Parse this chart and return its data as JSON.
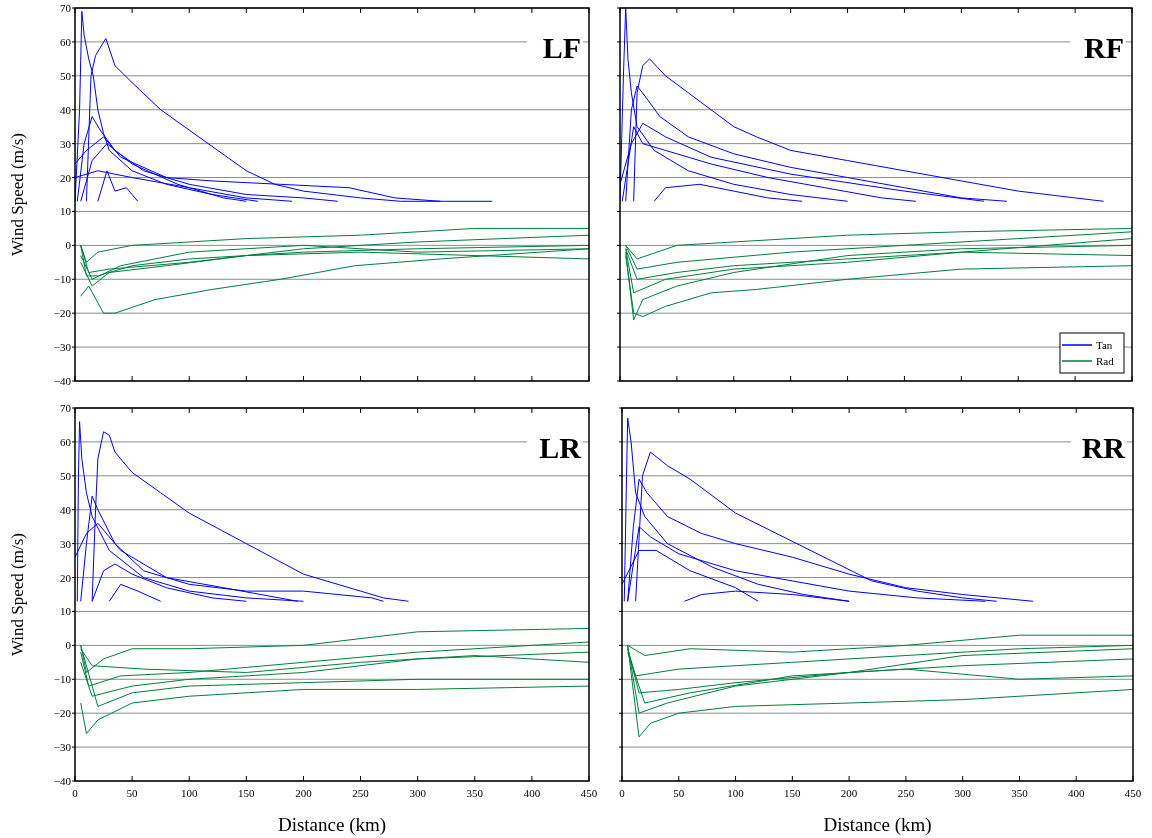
{
  "chart_data": [
    {
      "type": "line",
      "title": "LF",
      "ylabel": "Wind Speed (m/s)",
      "xlim": [
        0,
        450
      ],
      "xticks": [
        0,
        50,
        100,
        150,
        200,
        250,
        300,
        350,
        400,
        450
      ],
      "ylim": [
        -40,
        70
      ],
      "yticks": [
        -40,
        -30,
        -20,
        -10,
        0,
        10,
        20,
        30,
        40,
        50,
        60,
        70
      ],
      "grid": "y",
      "legend": false,
      "tick_labels": "y",
      "marker": "none",
      "line_style": "solid",
      "series": [
        {
          "color": "#0000ff",
          "x": [
            0,
            4,
            6,
            8,
            12,
            16,
            20,
            25,
            30,
            50,
            80,
            120,
            160
          ],
          "values": [
            13,
            40,
            69,
            62,
            55,
            50,
            40,
            33,
            28,
            22,
            18,
            15,
            13
          ]
        },
        {
          "color": "#0000ff",
          "x": [
            10,
            14,
            18,
            27,
            35,
            50,
            75,
            100,
            125,
            150,
            175,
            200,
            250,
            285,
            365
          ],
          "values": [
            13,
            50,
            56,
            61,
            53,
            48,
            40,
            34,
            28,
            22,
            18,
            16,
            14,
            13,
            13
          ]
        },
        {
          "color": "#0000ff",
          "x": [
            2,
            8,
            15,
            22,
            35,
            60,
            100,
            150,
            200,
            230
          ],
          "values": [
            13,
            30,
            38,
            34,
            28,
            22,
            18,
            15,
            14,
            13
          ]
        },
        {
          "color": "#0000ff",
          "x": [
            0,
            10,
            25,
            40,
            80,
            120,
            180,
            240,
            280,
            320
          ],
          "values": [
            24,
            28,
            32,
            26,
            20,
            19,
            18,
            17,
            14,
            13
          ]
        },
        {
          "color": "#0000ff",
          "x": [
            5,
            15,
            28,
            50,
            90,
            130,
            150
          ],
          "values": [
            13,
            25,
            30,
            24,
            18,
            14,
            13
          ]
        },
        {
          "color": "#0000ff",
          "x": [
            20,
            28,
            35,
            45,
            55
          ],
          "values": [
            13,
            22,
            16,
            17,
            13
          ]
        },
        {
          "color": "#0000ff",
          "x": [
            0,
            20,
            50,
            100,
            150,
            190
          ],
          "values": [
            20,
            22,
            20,
            17,
            14,
            13
          ]
        },
        {
          "color": "#007f3f",
          "x": [
            5,
            10,
            20,
            50,
            100,
            200,
            300,
            450
          ],
          "values": [
            0,
            -9,
            -9,
            -6,
            -4,
            -2,
            -1,
            0
          ]
        },
        {
          "color": "#007f3f",
          "x": [
            5,
            12,
            25,
            35,
            70,
            120,
            180,
            245,
            320,
            450
          ],
          "values": [
            -15,
            -12,
            -20,
            -20,
            -16,
            -13,
            -10,
            -6,
            -4,
            -1
          ]
        },
        {
          "color": "#007f3f",
          "x": [
            5,
            10,
            20,
            50,
            150,
            250,
            350,
            450
          ],
          "values": [
            0,
            -5,
            -2,
            0,
            2,
            3,
            5,
            5
          ]
        },
        {
          "color": "#007f3f",
          "x": [
            5,
            15,
            30,
            80,
            150,
            250,
            350,
            450
          ],
          "values": [
            -5,
            -12,
            -8,
            -6,
            -3,
            -2,
            -3,
            -4
          ]
        },
        {
          "color": "#007f3f",
          "x": [
            5,
            12,
            30,
            100,
            200,
            300,
            450
          ],
          "values": [
            0,
            -8,
            -7,
            -5,
            -1,
            1,
            3
          ]
        },
        {
          "color": "#007f3f",
          "x": [
            5,
            15,
            40,
            100,
            200,
            300,
            450
          ],
          "values": [
            -3,
            -10,
            -6,
            -2,
            0,
            -2,
            -1
          ]
        }
      ]
    },
    {
      "type": "line",
      "title": "RF",
      "xlim": [
        0,
        450
      ],
      "xticks": [
        0,
        50,
        100,
        150,
        200,
        250,
        300,
        350,
        400,
        450
      ],
      "ylim": [
        -40,
        70
      ],
      "yticks": [
        -40,
        -30,
        -20,
        -10,
        0,
        10,
        20,
        30,
        40,
        50,
        60,
        70
      ],
      "grid": "y",
      "legend": "bottom right",
      "tick_labels": false,
      "marker": "none",
      "line_style": "solid",
      "series": [
        {
          "name": "Tan",
          "color": "#0000ff",
          "x": [
            0,
            3,
            5,
            7,
            10,
            15,
            30,
            60,
            100,
            150,
            200
          ],
          "values": [
            13,
            50,
            70,
            55,
            45,
            35,
            28,
            22,
            18,
            15,
            13
          ]
        },
        {
          "color": "#0000ff",
          "x": [
            12,
            15,
            20,
            26,
            40,
            60,
            80,
            100,
            120,
            150,
            200,
            250,
            300,
            350,
            400,
            425
          ],
          "values": [
            13,
            45,
            53,
            55,
            50,
            45,
            40,
            35,
            32,
            28,
            25,
            22,
            19,
            16,
            14,
            13
          ]
        },
        {
          "color": "#0000ff",
          "x": [
            5,
            10,
            15,
            22,
            35,
            60,
            100,
            150,
            200,
            250,
            300,
            340
          ],
          "values": [
            13,
            40,
            47,
            44,
            38,
            32,
            27,
            23,
            20,
            17,
            14,
            13
          ]
        },
        {
          "color": "#0000ff",
          "x": [
            2,
            12,
            20,
            40,
            80,
            130,
            180,
            230,
            260
          ],
          "values": [
            13,
            35,
            30,
            28,
            24,
            20,
            17,
            14,
            13
          ]
        },
        {
          "color": "#0000ff",
          "x": [
            30,
            40,
            70,
            100,
            130,
            160
          ],
          "values": [
            13,
            17,
            18,
            16,
            14,
            13
          ]
        },
        {
          "color": "#0000ff",
          "x": [
            0,
            10,
            20,
            40,
            80,
            150,
            250,
            320
          ],
          "values": [
            18,
            30,
            36,
            32,
            26,
            21,
            16,
            13
          ]
        },
        {
          "name": "Rad",
          "color": "#007f3f",
          "x": [
            5,
            12,
            20,
            40,
            80,
            120,
            200,
            300,
            450
          ],
          "values": [
            -3,
            -20,
            -21,
            -18,
            -14,
            -13,
            -10,
            -7,
            -6
          ]
        },
        {
          "color": "#007f3f",
          "x": [
            5,
            12,
            20,
            50,
            100,
            200,
            300,
            450
          ],
          "values": [
            -2,
            -22,
            -16,
            -12,
            -8,
            -3,
            -1,
            0
          ]
        },
        {
          "color": "#007f3f",
          "x": [
            5,
            15,
            50,
            100,
            200,
            300,
            450
          ],
          "values": [
            0,
            -4,
            0,
            1,
            3,
            4,
            5
          ]
        },
        {
          "color": "#007f3f",
          "x": [
            5,
            15,
            50,
            100,
            200,
            300,
            450
          ],
          "values": [
            -1,
            -10,
            -8,
            -6,
            -4,
            -2,
            2
          ]
        },
        {
          "color": "#007f3f",
          "x": [
            5,
            12,
            40,
            100,
            200,
            300,
            450
          ],
          "values": [
            -1,
            -14,
            -10,
            -7,
            -5,
            -2,
            -3
          ]
        },
        {
          "color": "#007f3f",
          "x": [
            5,
            15,
            50,
            150,
            250,
            350,
            450
          ],
          "values": [
            0,
            -7,
            -5,
            -2,
            0,
            2,
            4
          ]
        }
      ]
    },
    {
      "type": "line",
      "title": "LR",
      "xlabel": "Distance (km)",
      "ylabel": "Wind Speed (m/s)",
      "xlim": [
        0,
        450
      ],
      "xticks": [
        0,
        50,
        100,
        150,
        200,
        250,
        300,
        350,
        400,
        450
      ],
      "ylim": [
        -40,
        70
      ],
      "yticks": [
        -40,
        -30,
        -20,
        -10,
        0,
        10,
        20,
        30,
        40,
        50,
        60,
        70
      ],
      "grid": "y",
      "legend": false,
      "marker": "none",
      "line_style": "solid",
      "series": [
        {
          "color": "#0000ff",
          "x": [
            2,
            3,
            4,
            6,
            10,
            15,
            30,
            60,
            100,
            150,
            200
          ],
          "values": [
            13,
            50,
            66,
            55,
            45,
            38,
            28,
            20,
            16,
            14,
            13
          ]
        },
        {
          "color": "#0000ff",
          "x": [
            15,
            18,
            20,
            25,
            30,
            35,
            50,
            75,
            100,
            150,
            200,
            250,
            270,
            292
          ],
          "values": [
            13,
            40,
            55,
            63,
            62,
            57,
            51,
            45,
            39,
            30,
            21,
            16,
            14,
            13
          ]
        },
        {
          "color": "#0000ff",
          "x": [
            5,
            10,
            15,
            20,
            35,
            60,
            100,
            150,
            200,
            260,
            270
          ],
          "values": [
            13,
            30,
            44,
            40,
            30,
            22,
            18,
            16,
            16,
            14,
            13
          ]
        },
        {
          "color": "#0000ff",
          "x": [
            0,
            10,
            20,
            40,
            80,
            130,
            195
          ],
          "values": [
            26,
            33,
            36,
            28,
            20,
            17,
            13
          ]
        },
        {
          "color": "#0000ff",
          "x": [
            15,
            25,
            35,
            50,
            80,
            120,
            150
          ],
          "values": [
            13,
            22,
            24,
            21,
            17,
            14,
            13
          ]
        },
        {
          "color": "#0000ff",
          "x": [
            30,
            40,
            55,
            75
          ],
          "values": [
            13,
            18,
            16,
            13
          ]
        },
        {
          "color": "#007f3f",
          "x": [
            5,
            10,
            25,
            50,
            100,
            200,
            300,
            450
          ],
          "values": [
            0,
            -8,
            -4,
            -1,
            -1,
            0,
            4,
            5
          ]
        },
        {
          "color": "#007f3f",
          "x": [
            5,
            10,
            20,
            50,
            100,
            200,
            300,
            450
          ],
          "values": [
            -17,
            -26,
            -22,
            -17,
            -15,
            -13,
            -13,
            -12
          ]
        },
        {
          "color": "#007f3f",
          "x": [
            5,
            15,
            50,
            100,
            200,
            300,
            450
          ],
          "values": [
            -5,
            -15,
            -12,
            -10,
            -8,
            -4,
            -2
          ]
        },
        {
          "color": "#007f3f",
          "x": [
            5,
            12,
            40,
            100,
            200,
            300,
            450
          ],
          "values": [
            -2,
            -12,
            -9,
            -8,
            -5,
            -2,
            1
          ]
        },
        {
          "color": "#007f3f",
          "x": [
            5,
            20,
            50,
            100,
            200,
            300,
            450
          ],
          "values": [
            0,
            -18,
            -14,
            -12,
            -11,
            -10,
            -10
          ]
        },
        {
          "color": "#007f3f",
          "x": [
            5,
            15,
            60,
            150,
            250,
            350,
            450
          ],
          "values": [
            -1,
            -6,
            -7,
            -8,
            -5,
            -3,
            -5
          ]
        }
      ]
    },
    {
      "type": "line",
      "title": "RR",
      "xlabel": "Distance (km)",
      "xlim": [
        0,
        450
      ],
      "xticks": [
        0,
        50,
        100,
        150,
        200,
        250,
        300,
        350,
        400,
        450
      ],
      "ylim": [
        -40,
        70
      ],
      "yticks": [
        -40,
        -30,
        -20,
        -10,
        0,
        10,
        20,
        30,
        40,
        50,
        60,
        70
      ],
      "grid": "y",
      "legend": false,
      "tick_labels": "x",
      "marker": "none",
      "line_style": "solid",
      "series": [
        {
          "color": "#0000ff",
          "x": [
            2,
            4,
            5,
            8,
            12,
            20,
            40,
            80,
            120,
            160,
            200
          ],
          "values": [
            13,
            50,
            67,
            60,
            45,
            38,
            30,
            23,
            18,
            15,
            13
          ]
        },
        {
          "color": "#0000ff",
          "x": [
            12,
            18,
            25,
            40,
            60,
            80,
            100,
            130,
            160,
            190,
            220,
            260,
            300,
            330
          ],
          "values": [
            13,
            50,
            57,
            53,
            49,
            44,
            39,
            34,
            29,
            24,
            19,
            16,
            14,
            13
          ]
        },
        {
          "color": "#0000ff",
          "x": [
            5,
            10,
            15,
            22,
            40,
            70,
            100,
            150,
            200,
            250,
            300,
            362
          ],
          "values": [
            13,
            35,
            49,
            45,
            38,
            33,
            30,
            26,
            21,
            17,
            15,
            13
          ]
        },
        {
          "color": "#0000ff",
          "x": [
            5,
            15,
            25,
            50,
            100,
            150,
            200,
            260,
            320
          ],
          "values": [
            13,
            35,
            32,
            27,
            22,
            19,
            16,
            14,
            13
          ]
        },
        {
          "color": "#0000ff",
          "x": [
            55,
            70,
            100,
            150,
            200
          ],
          "values": [
            13,
            15,
            16,
            15,
            13
          ]
        },
        {
          "color": "#0000ff",
          "x": [
            0,
            15,
            30,
            60,
            100,
            120
          ],
          "values": [
            18,
            28,
            28,
            22,
            17,
            13
          ]
        },
        {
          "color": "#007f3f",
          "x": [
            5,
            15,
            25,
            50,
            100,
            200,
            300,
            450
          ],
          "values": [
            0,
            -27,
            -23,
            -20,
            -18,
            -17,
            -16,
            -13
          ]
        },
        {
          "color": "#007f3f",
          "x": [
            5,
            15,
            40,
            100,
            200,
            300,
            450
          ],
          "values": [
            0,
            -20,
            -17,
            -12,
            -8,
            -3,
            -1
          ]
        },
        {
          "color": "#007f3f",
          "x": [
            5,
            20,
            60,
            150,
            250,
            350,
            450
          ],
          "values": [
            0,
            -3,
            -1,
            -2,
            0,
            3,
            3
          ]
        },
        {
          "color": "#007f3f",
          "x": [
            5,
            15,
            50,
            100,
            200,
            300,
            450
          ],
          "values": [
            -1,
            -14,
            -13,
            -11,
            -8,
            -6,
            -4
          ]
        },
        {
          "color": "#007f3f",
          "x": [
            5,
            20,
            60,
            150,
            250,
            350,
            450
          ],
          "values": [
            -2,
            -17,
            -14,
            -9,
            -7,
            -10,
            -9
          ]
        },
        {
          "color": "#007f3f",
          "x": [
            5,
            12,
            50,
            150,
            250,
            350,
            450
          ],
          "values": [
            -1,
            -9,
            -7,
            -5,
            -3,
            -1,
            0
          ]
        }
      ]
    }
  ]
}
